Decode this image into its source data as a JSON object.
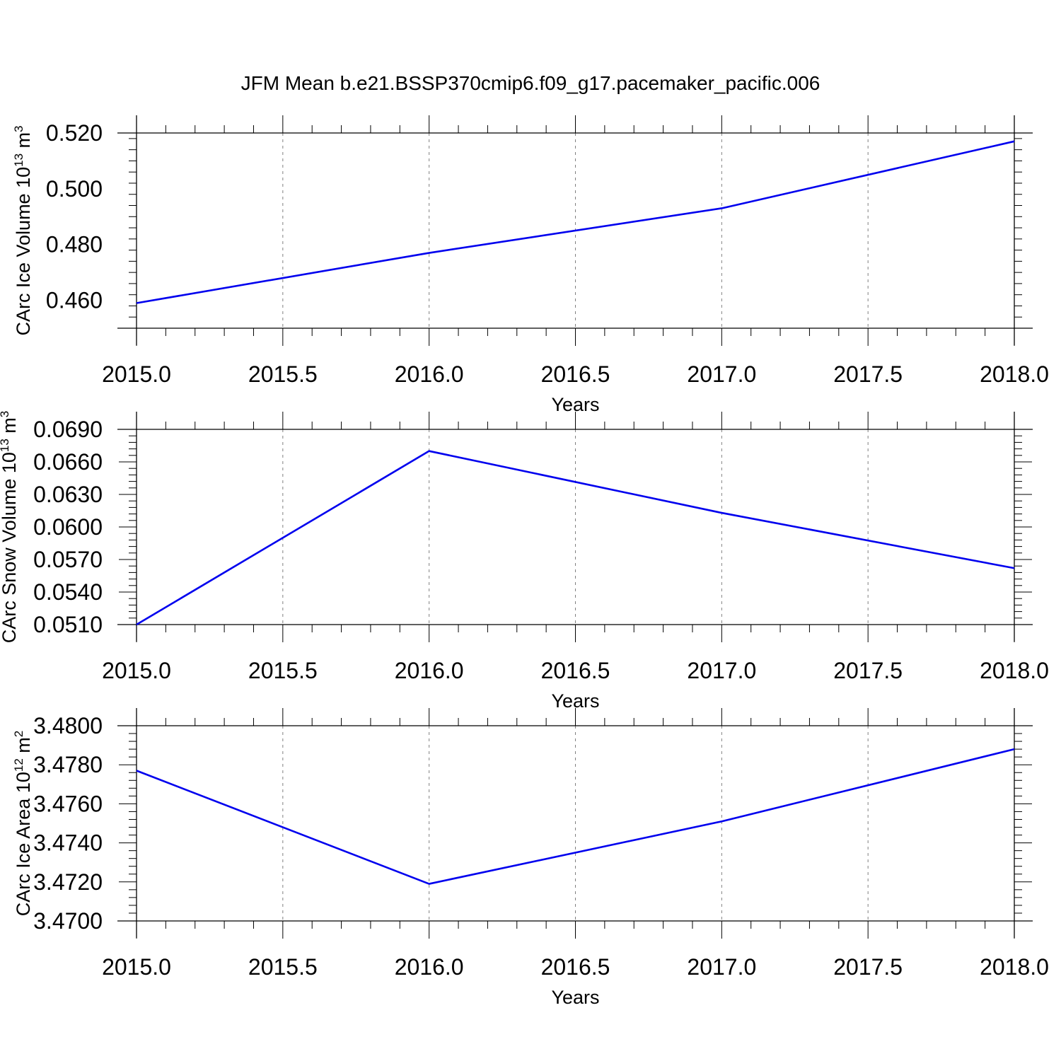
{
  "title": "JFM Mean b.e21.BSSP370cmip6.f09_g17.pacemaker_pacific.006",
  "colors": {
    "line": "#0000ee",
    "frame": "#000000",
    "grid": "#808080"
  },
  "chart_data": [
    {
      "type": "line",
      "xlabel": "Years",
      "ylabel": {
        "text": "CArc Ice Volume 10",
        "exp": "13",
        "unit_space": " m",
        "unit_exp": "3"
      },
      "xlim": [
        2015.0,
        2018.0
      ],
      "ylim": [
        0.45,
        0.52
      ],
      "x_ticks": [
        "2015.0",
        "2015.5",
        "2016.0",
        "2016.5",
        "2017.0",
        "2017.5",
        "2018.0"
      ],
      "y_ticks": [
        "0.460",
        "0.480",
        "0.500",
        "0.520"
      ],
      "grid": "vertical dashed",
      "x": [
        2015,
        2016,
        2017,
        2018
      ],
      "y": [
        0.459,
        0.477,
        0.493,
        0.517
      ]
    },
    {
      "type": "line",
      "xlabel": "Years",
      "ylabel": {
        "text": "CArc Snow Volume 10",
        "exp": "13",
        "unit_space": " m",
        "unit_exp": "3"
      },
      "xlim": [
        2015.0,
        2018.0
      ],
      "ylim": [
        0.051,
        0.069
      ],
      "x_ticks": [
        "2015.0",
        "2015.5",
        "2016.0",
        "2016.5",
        "2017.0",
        "2017.5",
        "2018.0"
      ],
      "y_ticks": [
        "0.0510",
        "0.0540",
        "0.0570",
        "0.0600",
        "0.0630",
        "0.0660",
        "0.0690"
      ],
      "grid": "vertical dashed",
      "x": [
        2015,
        2016,
        2017,
        2018
      ],
      "y": [
        0.051,
        0.067,
        0.0613,
        0.0562
      ]
    },
    {
      "type": "line",
      "xlabel": "Years",
      "ylabel": {
        "text": "CArc Ice Area 10",
        "exp": "12",
        "unit_space": " m",
        "unit_exp": "2"
      },
      "xlim": [
        2015.0,
        2018.0
      ],
      "ylim": [
        3.47,
        3.48
      ],
      "x_ticks": [
        "2015.0",
        "2015.5",
        "2016.0",
        "2016.5",
        "2017.0",
        "2017.5",
        "2018.0"
      ],
      "y_ticks": [
        "3.4700",
        "3.4720",
        "3.4740",
        "3.4760",
        "3.4780",
        "3.4800"
      ],
      "grid": "vertical dashed",
      "x": [
        2015,
        2016,
        2017,
        2018
      ],
      "y": [
        3.4777,
        3.4719,
        3.4751,
        3.4788
      ]
    }
  ]
}
